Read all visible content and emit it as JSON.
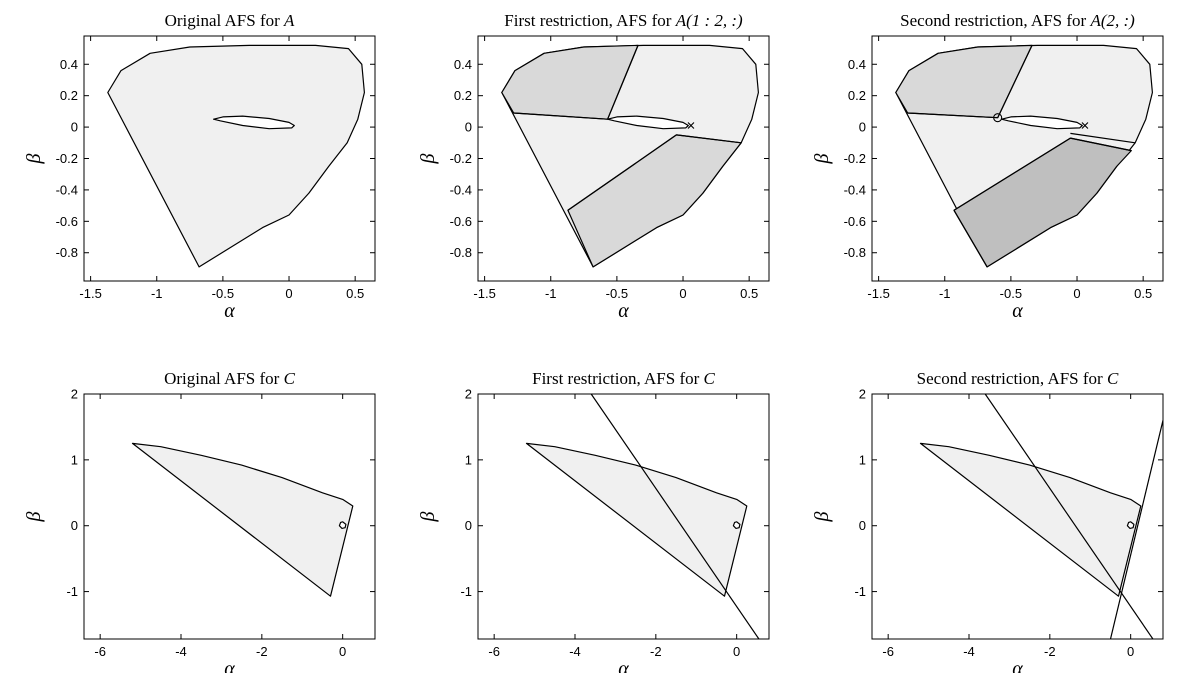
{
  "colors": {
    "light": "#f0f0f0",
    "medium": "#d9d9d9",
    "dark": "#bfbfbf",
    "line": "#000000"
  },
  "chart_data": [
    {
      "type": "area",
      "title_main": "Original AFS for ",
      "title_math": "A",
      "xlabel": "α",
      "ylabel": "β",
      "xlim": [
        -1.55,
        0.65
      ],
      "ylim": [
        -0.98,
        0.58
      ],
      "xticks": [
        -1.5,
        -1,
        -0.5,
        0,
        0.5
      ],
      "yticks": [
        -0.8,
        -0.6,
        -0.4,
        -0.2,
        0,
        0.2,
        0.4
      ],
      "regions": [
        {
          "fill": "light",
          "points": [
            [
              -1.37,
              0.22
            ],
            [
              -1.27,
              0.36
            ],
            [
              -1.05,
              0.47
            ],
            [
              -0.75,
              0.51
            ],
            [
              -0.3,
              0.52
            ],
            [
              0.2,
              0.52
            ],
            [
              0.45,
              0.5
            ],
            [
              0.55,
              0.4
            ],
            [
              0.57,
              0.22
            ],
            [
              0.52,
              0.05
            ],
            [
              0.44,
              -0.1
            ],
            [
              0.3,
              -0.25
            ],
            [
              0.15,
              -0.42
            ],
            [
              0,
              -0.56
            ],
            [
              -0.2,
              -0.64
            ],
            [
              -0.68,
              -0.89
            ]
          ]
        }
      ],
      "lines": [],
      "ellipses": [
        {
          "points": [
            [
              -0.57,
              0.05
            ],
            [
              -0.5,
              0.065
            ],
            [
              -0.35,
              0.07
            ],
            [
              -0.15,
              0.055
            ],
            [
              0,
              0.03
            ],
            [
              0.04,
              0.01
            ],
            [
              0.02,
              -0.005
            ],
            [
              -0.15,
              -0.01
            ],
            [
              -0.35,
              0.01
            ],
            [
              -0.52,
              0.04
            ]
          ]
        }
      ],
      "markers": []
    },
    {
      "type": "area",
      "title_main": "First restriction, AFS for ",
      "title_math": "A(1 : 2, :)",
      "xlabel": "α",
      "ylabel": "β",
      "xlim": [
        -1.55,
        0.65
      ],
      "ylim": [
        -0.98,
        0.58
      ],
      "xticks": [
        -1.5,
        -1,
        -0.5,
        0,
        0.5
      ],
      "yticks": [
        -0.8,
        -0.6,
        -0.4,
        -0.2,
        0,
        0.2,
        0.4
      ],
      "regions": [
        {
          "fill": "light",
          "points": [
            [
              -1.37,
              0.22
            ],
            [
              -1.27,
              0.36
            ],
            [
              -1.05,
              0.47
            ],
            [
              -0.75,
              0.51
            ],
            [
              -0.3,
              0.52
            ],
            [
              0.2,
              0.52
            ],
            [
              0.45,
              0.5
            ],
            [
              0.55,
              0.4
            ],
            [
              0.57,
              0.22
            ],
            [
              0.52,
              0.05
            ],
            [
              0.44,
              -0.1
            ],
            [
              0.3,
              -0.25
            ],
            [
              0.15,
              -0.42
            ],
            [
              0,
              -0.56
            ],
            [
              -0.2,
              -0.64
            ],
            [
              -0.68,
              -0.89
            ]
          ]
        },
        {
          "fill": "medium",
          "points": [
            [
              -1.37,
              0.22
            ],
            [
              -1.27,
              0.36
            ],
            [
              -1.05,
              0.47
            ],
            [
              -0.75,
              0.51
            ],
            [
              -0.34,
              0.52
            ],
            [
              -0.57,
              0.05
            ],
            [
              -1.28,
              0.09
            ]
          ]
        },
        {
          "fill": "medium",
          "points": [
            [
              -0.87,
              -0.53
            ],
            [
              -0.05,
              -0.05
            ],
            [
              0.44,
              -0.1
            ],
            [
              0.3,
              -0.25
            ],
            [
              0.15,
              -0.42
            ],
            [
              0,
              -0.56
            ],
            [
              -0.2,
              -0.64
            ],
            [
              -0.68,
              -0.89
            ]
          ]
        }
      ],
      "lines": [
        {
          "points": [
            [
              -1.28,
              0.09
            ],
            [
              -0.57,
              0.05
            ]
          ]
        },
        {
          "points": [
            [
              -0.57,
              0.05
            ],
            [
              -0.34,
              0.52
            ]
          ]
        },
        {
          "points": [
            [
              -0.87,
              -0.53
            ],
            [
              -0.05,
              -0.05
            ]
          ]
        },
        {
          "points": [
            [
              -0.05,
              -0.05
            ],
            [
              0.44,
              -0.1
            ]
          ]
        }
      ],
      "ellipses": [
        {
          "points": [
            [
              -0.57,
              0.05
            ],
            [
              -0.5,
              0.065
            ],
            [
              -0.35,
              0.07
            ],
            [
              -0.15,
              0.055
            ],
            [
              0,
              0.03
            ],
            [
              0.04,
              0.01
            ],
            [
              0.02,
              -0.005
            ],
            [
              -0.15,
              -0.01
            ],
            [
              -0.35,
              0.01
            ],
            [
              -0.52,
              0.04
            ]
          ]
        }
      ],
      "markers": [
        {
          "type": "x",
          "x": 0.06,
          "y": 0.01
        }
      ]
    },
    {
      "type": "area",
      "title_main": "Second restriction, AFS for ",
      "title_math": "A(2, :)",
      "xlabel": "α",
      "ylabel": "β",
      "xlim": [
        -1.55,
        0.65
      ],
      "ylim": [
        -0.98,
        0.58
      ],
      "xticks": [
        -1.5,
        -1,
        -0.5,
        0,
        0.5
      ],
      "yticks": [
        -0.8,
        -0.6,
        -0.4,
        -0.2,
        0,
        0.2,
        0.4
      ],
      "regions": [
        {
          "fill": "light",
          "points": [
            [
              -1.37,
              0.22
            ],
            [
              -1.27,
              0.36
            ],
            [
              -1.05,
              0.47
            ],
            [
              -0.75,
              0.51
            ],
            [
              -0.3,
              0.52
            ],
            [
              0.2,
              0.52
            ],
            [
              0.45,
              0.5
            ],
            [
              0.55,
              0.4
            ],
            [
              0.57,
              0.22
            ],
            [
              0.52,
              0.05
            ],
            [
              0.44,
              -0.1
            ],
            [
              0.3,
              -0.25
            ],
            [
              0.15,
              -0.42
            ],
            [
              0,
              -0.56
            ],
            [
              -0.2,
              -0.64
            ],
            [
              -0.68,
              -0.89
            ]
          ]
        },
        {
          "fill": "medium",
          "points": [
            [
              -1.37,
              0.22
            ],
            [
              -1.27,
              0.36
            ],
            [
              -1.05,
              0.47
            ],
            [
              -0.75,
              0.51
            ],
            [
              -0.34,
              0.52
            ],
            [
              -0.6,
              0.06
            ],
            [
              -1.28,
              0.09
            ]
          ]
        },
        {
          "fill": "dark",
          "points": [
            [
              -0.93,
              -0.53
            ],
            [
              -0.05,
              -0.07
            ],
            [
              0.41,
              -0.15
            ],
            [
              0.3,
              -0.25
            ],
            [
              0.15,
              -0.42
            ],
            [
              0,
              -0.56
            ],
            [
              -0.2,
              -0.64
            ],
            [
              -0.68,
              -0.89
            ]
          ]
        }
      ],
      "lines": [
        {
          "points": [
            [
              -1.28,
              0.09
            ],
            [
              -0.6,
              0.06
            ]
          ]
        },
        {
          "points": [
            [
              -0.6,
              0.06
            ],
            [
              -0.34,
              0.52
            ]
          ]
        },
        {
          "points": [
            [
              -0.93,
              -0.53
            ],
            [
              -0.05,
              -0.07
            ]
          ]
        },
        {
          "points": [
            [
              -0.05,
              -0.07
            ],
            [
              0.41,
              -0.15
            ]
          ]
        },
        {
          "points": [
            [
              -0.05,
              -0.04
            ],
            [
              0.44,
              -0.1
            ]
          ]
        },
        {
          "points": [
            [
              -0.93,
              -0.53
            ],
            [
              -0.68,
              -0.89
            ]
          ]
        }
      ],
      "ellipses": [
        {
          "points": [
            [
              -0.57,
              0.05
            ],
            [
              -0.5,
              0.065
            ],
            [
              -0.35,
              0.07
            ],
            [
              -0.15,
              0.055
            ],
            [
              0,
              0.03
            ],
            [
              0.04,
              0.01
            ],
            [
              0.02,
              -0.005
            ],
            [
              -0.15,
              -0.01
            ],
            [
              -0.35,
              0.01
            ],
            [
              -0.52,
              0.04
            ]
          ]
        }
      ],
      "markers": [
        {
          "type": "o",
          "x": -0.6,
          "y": 0.06
        },
        {
          "type": "x",
          "x": 0.06,
          "y": 0.01
        }
      ]
    },
    {
      "type": "area",
      "title_main": "Original AFS for ",
      "title_math": "C",
      "xlabel": "α",
      "ylabel": "β",
      "xlim": [
        -6.4,
        0.8
      ],
      "ylim": [
        -1.72,
        2.0
      ],
      "xticks": [
        -6,
        -4,
        -2,
        0
      ],
      "yticks": [
        -1,
        0,
        1,
        2
      ],
      "regions": [
        {
          "fill": "light",
          "points": [
            [
              -5.2,
              1.25
            ],
            [
              -4.5,
              1.2
            ],
            [
              -3.5,
              1.07
            ],
            [
              -2.5,
              0.92
            ],
            [
              -1.5,
              0.73
            ],
            [
              -0.5,
              0.5
            ],
            [
              0,
              0.4
            ],
            [
              0.25,
              0.3
            ],
            [
              -0.3,
              -1.07
            ]
          ]
        }
      ],
      "lines": [],
      "ellipses": [
        {
          "points": [
            [
              0,
              0.06
            ],
            [
              0.08,
              0.02
            ],
            [
              0.06,
              -0.03
            ],
            [
              -0.02,
              -0.04
            ],
            [
              -0.08,
              0.0
            ],
            [
              -0.05,
              0.05
            ]
          ]
        }
      ],
      "markers": []
    },
    {
      "type": "area",
      "title_main": "First restriction, AFS for ",
      "title_math": "C",
      "xlabel": "α",
      "ylabel": "β",
      "xlim": [
        -6.4,
        0.8
      ],
      "ylim": [
        -1.72,
        2.0
      ],
      "xticks": [
        -6,
        -4,
        -2,
        0
      ],
      "yticks": [
        -1,
        0,
        1,
        2
      ],
      "regions": [
        {
          "fill": "light",
          "points": [
            [
              -5.2,
              1.25
            ],
            [
              -4.5,
              1.2
            ],
            [
              -3.5,
              1.07
            ],
            [
              -2.5,
              0.92
            ],
            [
              -1.5,
              0.73
            ],
            [
              -0.5,
              0.5
            ],
            [
              0,
              0.4
            ],
            [
              0.25,
              0.3
            ],
            [
              -0.3,
              -1.07
            ]
          ]
        }
      ],
      "lines": [
        {
          "points": [
            [
              -3.6,
              2.0
            ],
            [
              0.55,
              -1.72
            ]
          ]
        }
      ],
      "ellipses": [
        {
          "points": [
            [
              0,
              0.06
            ],
            [
              0.08,
              0.02
            ],
            [
              0.06,
              -0.03
            ],
            [
              -0.02,
              -0.04
            ],
            [
              -0.08,
              0.0
            ],
            [
              -0.05,
              0.05
            ]
          ]
        }
      ],
      "markers": []
    },
    {
      "type": "area",
      "title_main": "Second restriction, AFS for ",
      "title_math": "C",
      "xlabel": "α",
      "ylabel": "β",
      "xlim": [
        -6.4,
        0.8
      ],
      "ylim": [
        -1.72,
        2.0
      ],
      "xticks": [
        -6,
        -4,
        -2,
        0
      ],
      "yticks": [
        -1,
        0,
        1,
        2
      ],
      "regions": [
        {
          "fill": "light",
          "points": [
            [
              -5.2,
              1.25
            ],
            [
              -4.5,
              1.2
            ],
            [
              -3.5,
              1.07
            ],
            [
              -2.5,
              0.92
            ],
            [
              -1.5,
              0.73
            ],
            [
              -0.5,
              0.5
            ],
            [
              0,
              0.4
            ],
            [
              0.25,
              0.3
            ],
            [
              -0.3,
              -1.07
            ]
          ]
        }
      ],
      "lines": [
        {
          "points": [
            [
              -3.6,
              2.0
            ],
            [
              0.55,
              -1.72
            ]
          ]
        },
        {
          "points": [
            [
              -0.5,
              -1.72
            ],
            [
              0.8,
              1.6
            ]
          ]
        }
      ],
      "ellipses": [
        {
          "points": [
            [
              0,
              0.06
            ],
            [
              0.08,
              0.02
            ],
            [
              0.06,
              -0.03
            ],
            [
              -0.02,
              -0.04
            ],
            [
              -0.08,
              0.0
            ],
            [
              -0.05,
              0.05
            ]
          ]
        }
      ],
      "markers": []
    }
  ]
}
